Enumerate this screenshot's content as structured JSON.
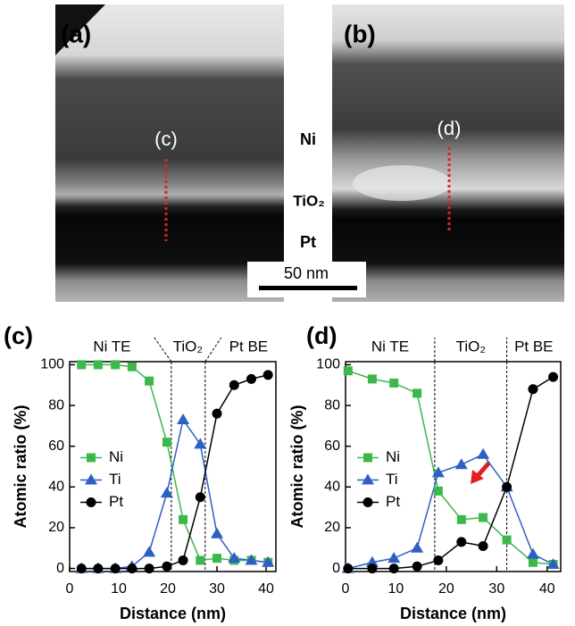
{
  "micrographs": {
    "panels": [
      "(a)",
      "(b)"
    ],
    "probe_labels": [
      "(c)",
      "(d)"
    ],
    "layers": [
      "Ni",
      "TiO₂",
      "Pt"
    ],
    "scale_bar": "50 nm"
  },
  "chart_data": [
    {
      "type": "line",
      "panel_label": "(c)",
      "regions": [
        "Ni TE",
        "TiO₂",
        "Pt BE"
      ],
      "boundaries": [
        20.7,
        27.6
      ],
      "xlabel": "Distance (nm)",
      "ylabel": "Atomic ratio (%)",
      "x": [
        2.4,
        5.8,
        9.3,
        12.7,
        16.2,
        19.8,
        23.1,
        26.6,
        30.0,
        33.5,
        37.0,
        40.4
      ],
      "series": [
        {
          "name": "Ni",
          "color": "#3cb84a",
          "marker": "square",
          "values": [
            100,
            100,
            100,
            99,
            92,
            62,
            24,
            4,
            5,
            4,
            4,
            3
          ]
        },
        {
          "name": "Ti",
          "color": "#2d5fc4",
          "marker": "triangle",
          "values": [
            0,
            0,
            0,
            1,
            8,
            37,
            73,
            61,
            17,
            5,
            4,
            3
          ]
        },
        {
          "name": "Pt",
          "color": "#000000",
          "marker": "circle",
          "values": [
            0,
            0,
            0,
            0,
            0,
            1,
            4,
            35,
            76,
            90,
            93,
            95
          ]
        }
      ],
      "xlim": [
        0,
        42
      ],
      "ylim": [
        -1.5,
        101.5
      ],
      "xticks": [
        0,
        10,
        20,
        30,
        40
      ],
      "yticks": [
        0,
        20,
        40,
        60,
        80,
        100
      ],
      "legend": "center left"
    },
    {
      "type": "line",
      "panel_label": "(d)",
      "regions": [
        "Ni TE",
        "TiO₂",
        "Pt BE"
      ],
      "boundaries": [
        17.7,
        32.0
      ],
      "xlabel": "Distance (nm)",
      "ylabel": "Atomic ratio (%)",
      "x": [
        0.5,
        5.3,
        9.6,
        14.2,
        18.4,
        23.0,
        27.3,
        32.0,
        37.2,
        41.2
      ],
      "series": [
        {
          "name": "Ni",
          "color": "#3cb84a",
          "marker": "square",
          "values": [
            97,
            93,
            91,
            86,
            38,
            24,
            25,
            14,
            3,
            2
          ]
        },
        {
          "name": "Ti",
          "color": "#2d5fc4",
          "marker": "triangle",
          "values": [
            0,
            3,
            5,
            10,
            47,
            51,
            56,
            40,
            7,
            2
          ]
        },
        {
          "name": "Pt",
          "color": "#000000",
          "marker": "circle",
          "values": [
            0,
            0,
            0,
            1,
            4,
            13,
            11,
            40,
            88,
            94
          ]
        }
      ],
      "xlim": [
        0,
        42.7
      ],
      "ylim": [
        -1.5,
        101.5
      ],
      "xticks": [
        0,
        10,
        20,
        30,
        40
      ],
      "yticks": [
        0,
        20,
        40,
        60,
        80,
        100
      ],
      "legend": "center left"
    }
  ]
}
